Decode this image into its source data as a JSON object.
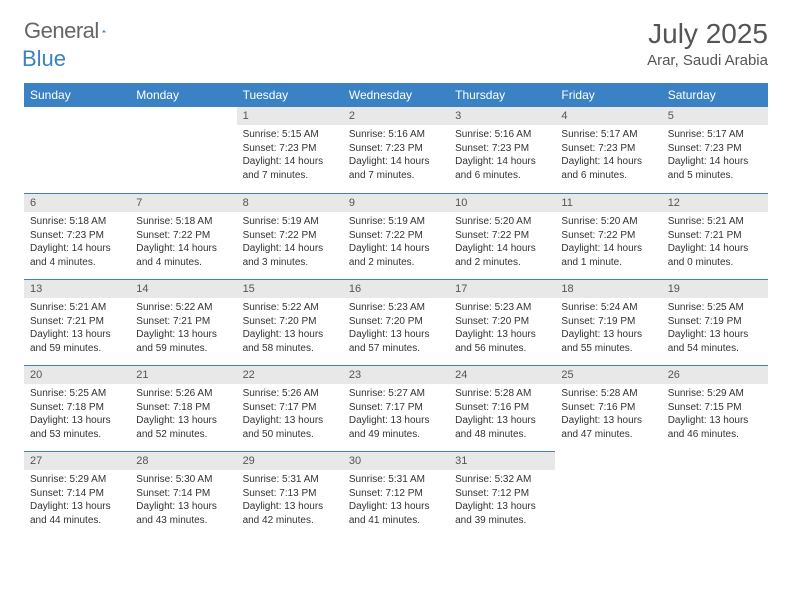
{
  "logo": {
    "general": "General",
    "blue": "Blue"
  },
  "title": "July 2025",
  "location": "Arar, Saudi Arabia",
  "weekdays": [
    "Sunday",
    "Monday",
    "Tuesday",
    "Wednesday",
    "Thursday",
    "Friday",
    "Saturday"
  ],
  "header_bg": "#3b82c4",
  "header_fg": "#ffffff",
  "daynum_bg": "#e8e8e8",
  "border_color": "#3b82c4",
  "grid": [
    [
      null,
      null,
      {
        "num": "1",
        "sunrise": "Sunrise: 5:15 AM",
        "sunset": "Sunset: 7:23 PM",
        "day1": "Daylight: 14 hours",
        "day2": "and 7 minutes."
      },
      {
        "num": "2",
        "sunrise": "Sunrise: 5:16 AM",
        "sunset": "Sunset: 7:23 PM",
        "day1": "Daylight: 14 hours",
        "day2": "and 7 minutes."
      },
      {
        "num": "3",
        "sunrise": "Sunrise: 5:16 AM",
        "sunset": "Sunset: 7:23 PM",
        "day1": "Daylight: 14 hours",
        "day2": "and 6 minutes."
      },
      {
        "num": "4",
        "sunrise": "Sunrise: 5:17 AM",
        "sunset": "Sunset: 7:23 PM",
        "day1": "Daylight: 14 hours",
        "day2": "and 6 minutes."
      },
      {
        "num": "5",
        "sunrise": "Sunrise: 5:17 AM",
        "sunset": "Sunset: 7:23 PM",
        "day1": "Daylight: 14 hours",
        "day2": "and 5 minutes."
      }
    ],
    [
      {
        "num": "6",
        "sunrise": "Sunrise: 5:18 AM",
        "sunset": "Sunset: 7:23 PM",
        "day1": "Daylight: 14 hours",
        "day2": "and 4 minutes."
      },
      {
        "num": "7",
        "sunrise": "Sunrise: 5:18 AM",
        "sunset": "Sunset: 7:22 PM",
        "day1": "Daylight: 14 hours",
        "day2": "and 4 minutes."
      },
      {
        "num": "8",
        "sunrise": "Sunrise: 5:19 AM",
        "sunset": "Sunset: 7:22 PM",
        "day1": "Daylight: 14 hours",
        "day2": "and 3 minutes."
      },
      {
        "num": "9",
        "sunrise": "Sunrise: 5:19 AM",
        "sunset": "Sunset: 7:22 PM",
        "day1": "Daylight: 14 hours",
        "day2": "and 2 minutes."
      },
      {
        "num": "10",
        "sunrise": "Sunrise: 5:20 AM",
        "sunset": "Sunset: 7:22 PM",
        "day1": "Daylight: 14 hours",
        "day2": "and 2 minutes."
      },
      {
        "num": "11",
        "sunrise": "Sunrise: 5:20 AM",
        "sunset": "Sunset: 7:22 PM",
        "day1": "Daylight: 14 hours",
        "day2": "and 1 minute."
      },
      {
        "num": "12",
        "sunrise": "Sunrise: 5:21 AM",
        "sunset": "Sunset: 7:21 PM",
        "day1": "Daylight: 14 hours",
        "day2": "and 0 minutes."
      }
    ],
    [
      {
        "num": "13",
        "sunrise": "Sunrise: 5:21 AM",
        "sunset": "Sunset: 7:21 PM",
        "day1": "Daylight: 13 hours",
        "day2": "and 59 minutes."
      },
      {
        "num": "14",
        "sunrise": "Sunrise: 5:22 AM",
        "sunset": "Sunset: 7:21 PM",
        "day1": "Daylight: 13 hours",
        "day2": "and 59 minutes."
      },
      {
        "num": "15",
        "sunrise": "Sunrise: 5:22 AM",
        "sunset": "Sunset: 7:20 PM",
        "day1": "Daylight: 13 hours",
        "day2": "and 58 minutes."
      },
      {
        "num": "16",
        "sunrise": "Sunrise: 5:23 AM",
        "sunset": "Sunset: 7:20 PM",
        "day1": "Daylight: 13 hours",
        "day2": "and 57 minutes."
      },
      {
        "num": "17",
        "sunrise": "Sunrise: 5:23 AM",
        "sunset": "Sunset: 7:20 PM",
        "day1": "Daylight: 13 hours",
        "day2": "and 56 minutes."
      },
      {
        "num": "18",
        "sunrise": "Sunrise: 5:24 AM",
        "sunset": "Sunset: 7:19 PM",
        "day1": "Daylight: 13 hours",
        "day2": "and 55 minutes."
      },
      {
        "num": "19",
        "sunrise": "Sunrise: 5:25 AM",
        "sunset": "Sunset: 7:19 PM",
        "day1": "Daylight: 13 hours",
        "day2": "and 54 minutes."
      }
    ],
    [
      {
        "num": "20",
        "sunrise": "Sunrise: 5:25 AM",
        "sunset": "Sunset: 7:18 PM",
        "day1": "Daylight: 13 hours",
        "day2": "and 53 minutes."
      },
      {
        "num": "21",
        "sunrise": "Sunrise: 5:26 AM",
        "sunset": "Sunset: 7:18 PM",
        "day1": "Daylight: 13 hours",
        "day2": "and 52 minutes."
      },
      {
        "num": "22",
        "sunrise": "Sunrise: 5:26 AM",
        "sunset": "Sunset: 7:17 PM",
        "day1": "Daylight: 13 hours",
        "day2": "and 50 minutes."
      },
      {
        "num": "23",
        "sunrise": "Sunrise: 5:27 AM",
        "sunset": "Sunset: 7:17 PM",
        "day1": "Daylight: 13 hours",
        "day2": "and 49 minutes."
      },
      {
        "num": "24",
        "sunrise": "Sunrise: 5:28 AM",
        "sunset": "Sunset: 7:16 PM",
        "day1": "Daylight: 13 hours",
        "day2": "and 48 minutes."
      },
      {
        "num": "25",
        "sunrise": "Sunrise: 5:28 AM",
        "sunset": "Sunset: 7:16 PM",
        "day1": "Daylight: 13 hours",
        "day2": "and 47 minutes."
      },
      {
        "num": "26",
        "sunrise": "Sunrise: 5:29 AM",
        "sunset": "Sunset: 7:15 PM",
        "day1": "Daylight: 13 hours",
        "day2": "and 46 minutes."
      }
    ],
    [
      {
        "num": "27",
        "sunrise": "Sunrise: 5:29 AM",
        "sunset": "Sunset: 7:14 PM",
        "day1": "Daylight: 13 hours",
        "day2": "and 44 minutes."
      },
      {
        "num": "28",
        "sunrise": "Sunrise: 5:30 AM",
        "sunset": "Sunset: 7:14 PM",
        "day1": "Daylight: 13 hours",
        "day2": "and 43 minutes."
      },
      {
        "num": "29",
        "sunrise": "Sunrise: 5:31 AM",
        "sunset": "Sunset: 7:13 PM",
        "day1": "Daylight: 13 hours",
        "day2": "and 42 minutes."
      },
      {
        "num": "30",
        "sunrise": "Sunrise: 5:31 AM",
        "sunset": "Sunset: 7:12 PM",
        "day1": "Daylight: 13 hours",
        "day2": "and 41 minutes."
      },
      {
        "num": "31",
        "sunrise": "Sunrise: 5:32 AM",
        "sunset": "Sunset: 7:12 PM",
        "day1": "Daylight: 13 hours",
        "day2": "and 39 minutes."
      },
      null,
      null
    ]
  ]
}
